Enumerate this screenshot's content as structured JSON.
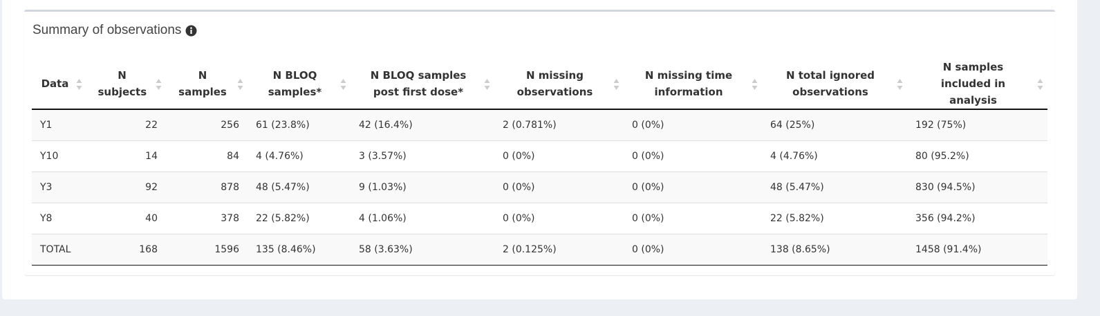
{
  "panel": {
    "title": "Summary of observations"
  },
  "table": {
    "columns": [
      "Data",
      "N subjects",
      "N samples",
      "N BLOQ samples*",
      "N BLOQ samples post first dose*",
      "N missing observations",
      "N missing time information",
      "N total ignored observations",
      "N samples included in analysis"
    ],
    "rows": [
      [
        "Y1",
        "22",
        "256",
        "61 (23.8%)",
        "42 (16.4%)",
        "2 (0.781%)",
        "0 (0%)",
        "64 (25%)",
        "192 (75%)"
      ],
      [
        "Y10",
        "14",
        "84",
        "4 (4.76%)",
        "3 (3.57%)",
        "0 (0%)",
        "0 (0%)",
        "4 (4.76%)",
        "80 (95.2%)"
      ],
      [
        "Y3",
        "92",
        "878",
        "48 (5.47%)",
        "9 (1.03%)",
        "0 (0%)",
        "0 (0%)",
        "48 (5.47%)",
        "830 (94.5%)"
      ],
      [
        "Y8",
        "40",
        "378",
        "22 (5.82%)",
        "4 (1.06%)",
        "0 (0%)",
        "0 (0%)",
        "22 (5.82%)",
        "356 (94.2%)"
      ],
      [
        "TOTAL",
        "168",
        "1596",
        "135 (8.46%)",
        "58 (3.63%)",
        "2 (0.125%)",
        "0 (0%)",
        "138 (8.65%)",
        "1458 (91.4%)"
      ]
    ]
  }
}
